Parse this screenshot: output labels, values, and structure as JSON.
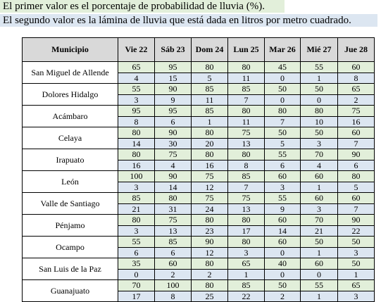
{
  "notes": {
    "line1": "El primer valor es el porcentaje de probabilidad de lluvia (%).",
    "line2": "El segundo valor es la lámina de lluvia que está dada en litros por metro cuadrado."
  },
  "table": {
    "header_municipio": "Municipio",
    "days": [
      {
        "label": "Vie 22"
      },
      {
        "label": "Sáb 23"
      },
      {
        "label": "Dom 24"
      },
      {
        "label": "Lun 25"
      },
      {
        "label": "Mar 26"
      },
      {
        "label": "Mié 27"
      },
      {
        "label": "Jue 28"
      }
    ],
    "rows": [
      {
        "municipio": "San Miguel de Allende",
        "prob": [
          "65",
          "95",
          "80",
          "80",
          "45",
          "55",
          "60"
        ],
        "lamina": [
          "4",
          "15",
          "5",
          "11",
          "0",
          "1",
          "8"
        ]
      },
      {
        "municipio": "Dolores Hidalgo",
        "prob": [
          "55",
          "90",
          "85",
          "85",
          "50",
          "50",
          "65"
        ],
        "lamina": [
          "3",
          "9",
          "11",
          "7",
          "0",
          "0",
          "2"
        ]
      },
      {
        "municipio": "Acámbaro",
        "prob": [
          "95",
          "95",
          "85",
          "80",
          "80",
          "80",
          "75"
        ],
        "lamina": [
          "8",
          "6",
          "1",
          "11",
          "7",
          "10",
          "16"
        ]
      },
      {
        "municipio": "Celaya",
        "prob": [
          "80",
          "90",
          "80",
          "75",
          "50",
          "50",
          "60"
        ],
        "lamina": [
          "14",
          "30",
          "20",
          "13",
          "5",
          "3",
          "7"
        ]
      },
      {
        "municipio": "Irapuato",
        "prob": [
          "80",
          "75",
          "80",
          "80",
          "55",
          "70",
          "90"
        ],
        "lamina": [
          "16",
          "4",
          "16",
          "8",
          "6",
          "4",
          "6"
        ]
      },
      {
        "municipio": "León",
        "prob": [
          "100",
          "90",
          "75",
          "85",
          "60",
          "60",
          "80"
        ],
        "lamina": [
          "3",
          "14",
          "12",
          "7",
          "3",
          "1",
          "5"
        ]
      },
      {
        "municipio": "Valle de Santiago",
        "prob": [
          "85",
          "80",
          "75",
          "75",
          "55",
          "60",
          "60"
        ],
        "lamina": [
          "21",
          "31",
          "24",
          "13",
          "9",
          "3",
          "7"
        ]
      },
      {
        "municipio": "Pénjamo",
        "prob": [
          "80",
          "75",
          "80",
          "80",
          "60",
          "70",
          "90"
        ],
        "lamina": [
          "3",
          "13",
          "23",
          "17",
          "14",
          "21",
          "22"
        ]
      },
      {
        "municipio": "Ocampo",
        "prob": [
          "55",
          "85",
          "90",
          "80",
          "60",
          "50",
          "50"
        ],
        "lamina": [
          "6",
          "6",
          "12",
          "3",
          "0",
          "1",
          "3"
        ]
      },
      {
        "municipio": "San Luis de la Paz",
        "prob": [
          "35",
          "60",
          "80",
          "65",
          "40",
          "60",
          "50"
        ],
        "lamina": [
          "0",
          "2",
          "2",
          "1",
          "0",
          "0",
          "1"
        ]
      },
      {
        "municipio": "Guanajuato",
        "prob": [
          "70",
          "100",
          "80",
          "85",
          "50",
          "55",
          "65"
        ],
        "lamina": [
          "17",
          "8",
          "25",
          "22",
          "2",
          "1",
          "3"
        ]
      }
    ]
  }
}
